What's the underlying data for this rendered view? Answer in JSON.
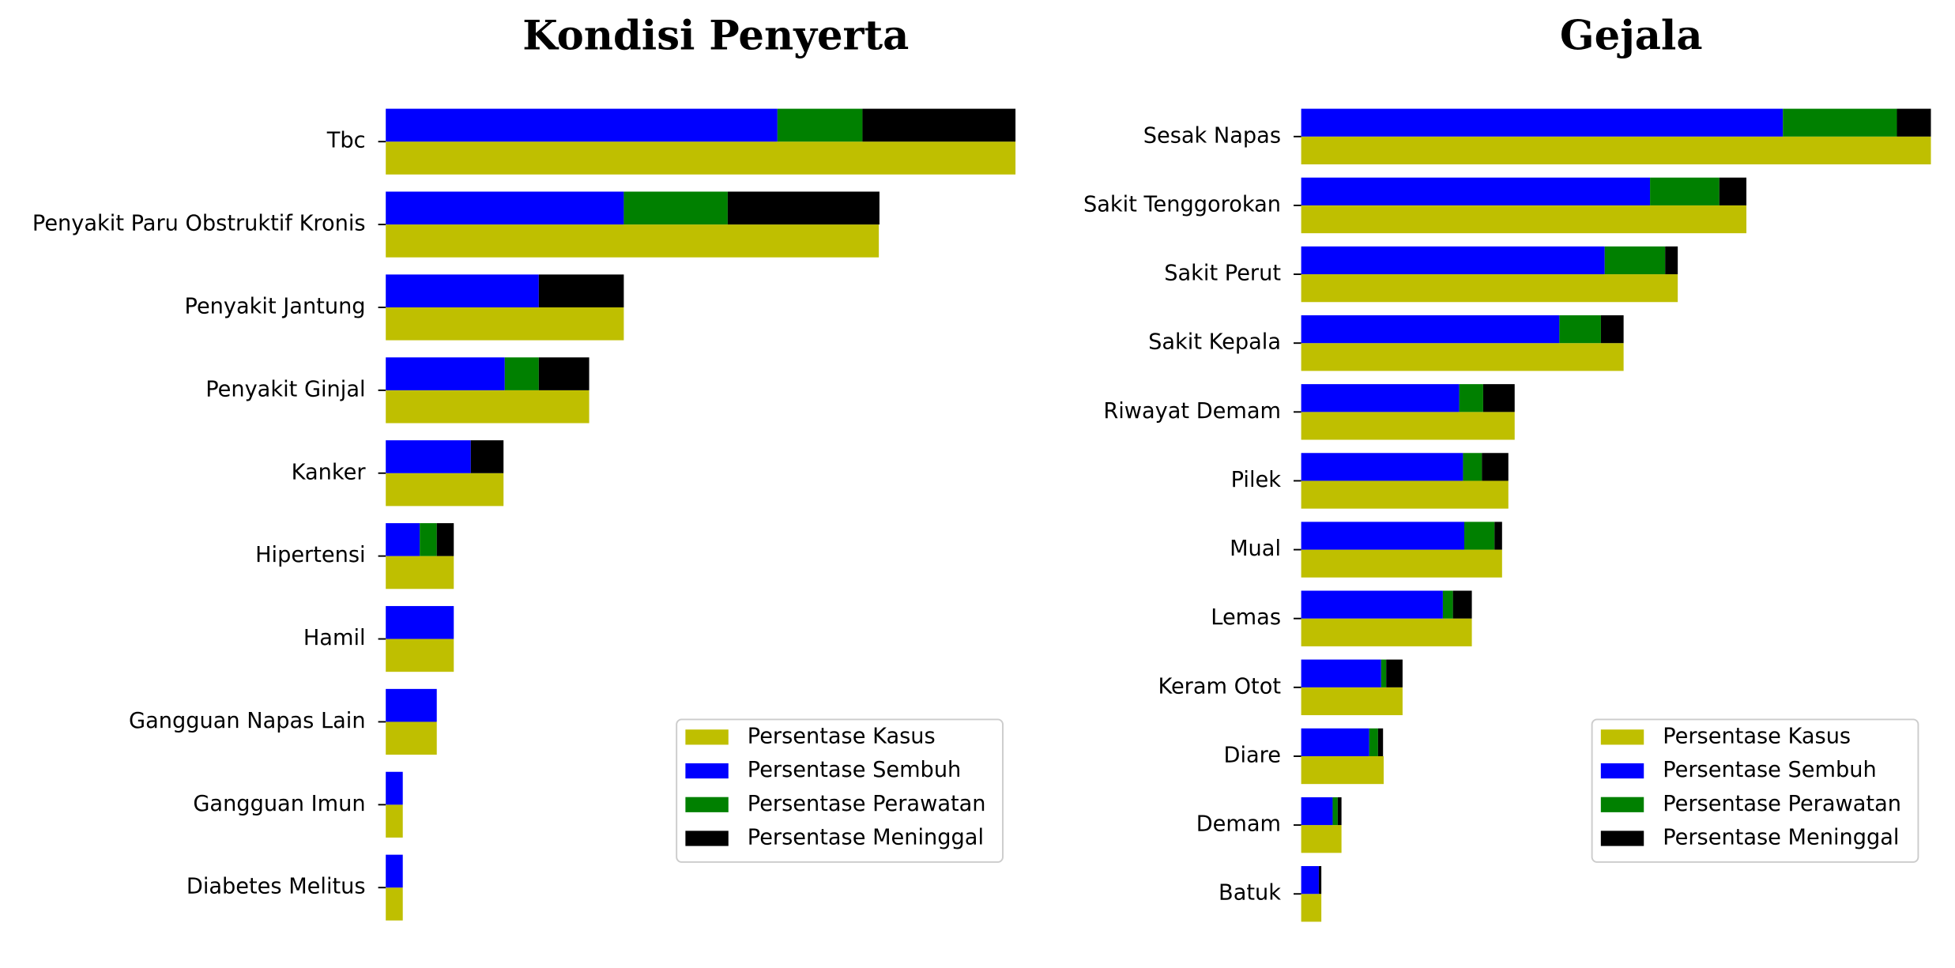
{
  "chart_data": [
    {
      "type": "bar",
      "title": "Kondisi Penyerta",
      "categories": [
        "Tbc",
        "Penyakit Paru Obstruktif Kronis",
        "Penyakit Jantung",
        "Penyakit Ginjal",
        "Kanker",
        "Hipertensi",
        "Hamil",
        "Gangguan Napas Lain",
        "Gangguan Imun",
        "Diabetes Melitus"
      ],
      "series": [
        {
          "name": "Persentase Kasus",
          "color": "#bfbf00",
          "values": [
            10.0,
            7.83,
            3.78,
            3.23,
            1.87,
            1.08,
            1.08,
            0.81,
            0.27,
            0.27
          ]
        },
        {
          "name": "Persentase Sembuh",
          "color": "#0000ff",
          "values": [
            6.22,
            3.78,
            2.43,
            1.89,
            1.35,
            0.54,
            1.08,
            0.81,
            0.27,
            0.27
          ]
        },
        {
          "name": "Persentase Perawatan",
          "color": "#008000",
          "values": [
            1.35,
            1.65,
            0,
            0.54,
            0,
            0.27,
            0,
            0,
            0,
            0
          ]
        },
        {
          "name": "Persentase Meninggal",
          "color": "#000000",
          "values": [
            2.43,
            2.41,
            1.35,
            0.8,
            0.52,
            0.27,
            0,
            0,
            0,
            0
          ]
        }
      ],
      "xlim": [
        0,
        10.2
      ],
      "legend": "lower right"
    },
    {
      "type": "bar",
      "title": "Gejala",
      "categories": [
        "Sesak Napas",
        "Sakit Tenggorokan",
        "Sakit Perut",
        "Sakit Kepala",
        "Riwayat Demam",
        "Pilek",
        "Mual",
        "Lemas",
        "Keram Otot",
        "Diare",
        "Demam",
        "Batuk"
      ],
      "series": [
        {
          "name": "Persentase Kasus",
          "color": "#bfbf00",
          "values": [
            10.0,
            7.07,
            5.98,
            5.12,
            3.39,
            3.29,
            3.19,
            2.71,
            1.61,
            1.31,
            0.64,
            0.32
          ]
        },
        {
          "name": "Persentase Sembuh",
          "color": "#0000ff",
          "values": [
            7.65,
            5.54,
            4.82,
            4.1,
            2.51,
            2.57,
            2.59,
            2.25,
            1.27,
            1.08,
            0.5,
            0.28
          ]
        },
        {
          "name": "Persentase Perawatan",
          "color": "#008000",
          "values": [
            1.81,
            1.1,
            0.96,
            0.66,
            0.38,
            0.3,
            0.48,
            0.16,
            0.08,
            0.14,
            0.08,
            0
          ]
        },
        {
          "name": "Persentase Meninggal",
          "color": "#000000",
          "values": [
            0.54,
            0.43,
            0.2,
            0.36,
            0.5,
            0.42,
            0.12,
            0.3,
            0.26,
            0.08,
            0.06,
            0.04
          ]
        }
      ],
      "xlim": [
        0,
        10.2
      ],
      "legend": "lower right"
    }
  ]
}
